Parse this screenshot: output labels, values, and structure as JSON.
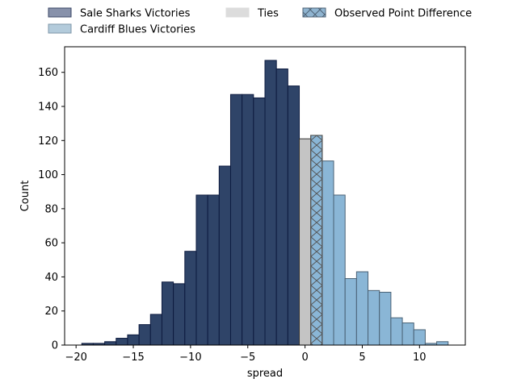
{
  "chart_data": {
    "type": "bar",
    "title": "",
    "xlabel": "spread",
    "ylabel": "Count",
    "xlim": [
      -21,
      14
    ],
    "ylim": [
      0,
      175
    ],
    "xticks": [
      -20,
      -15,
      -10,
      -5,
      0,
      5,
      10
    ],
    "xtick_labels": [
      "−20",
      "−15",
      "−10",
      "−5",
      "0",
      "5",
      "10"
    ],
    "yticks": [
      0,
      20,
      40,
      60,
      80,
      100,
      120,
      140,
      160
    ],
    "grid": false,
    "legend_position": "top, outside plot",
    "bin_width": 1,
    "series": [
      {
        "name": "Sale Sharks Victories",
        "color": "#2f4468",
        "edge_color": "#0d1b3f",
        "bins": [
          {
            "x0": -19.5,
            "count": 1
          },
          {
            "x0": -18.5,
            "count": 1
          },
          {
            "x0": -17.5,
            "count": 2
          },
          {
            "x0": -16.5,
            "count": 4
          },
          {
            "x0": -15.5,
            "count": 6
          },
          {
            "x0": -14.5,
            "count": 12
          },
          {
            "x0": -13.5,
            "count": 18
          },
          {
            "x0": -12.5,
            "count": 37
          },
          {
            "x0": -11.5,
            "count": 36
          },
          {
            "x0": -10.5,
            "count": 55
          },
          {
            "x0": -9.5,
            "count": 88
          },
          {
            "x0": -8.5,
            "count": 88
          },
          {
            "x0": -7.5,
            "count": 105
          },
          {
            "x0": -6.5,
            "count": 147
          },
          {
            "x0": -5.5,
            "count": 147
          },
          {
            "x0": -4.5,
            "count": 145
          },
          {
            "x0": -3.5,
            "count": 167
          },
          {
            "x0": -2.5,
            "count": 162
          },
          {
            "x0": -1.5,
            "count": 152
          }
        ]
      },
      {
        "name": "Ties",
        "color": "#c4c4c4",
        "edge_color": "#333333",
        "bins": [
          {
            "x0": -0.5,
            "count": 121
          }
        ]
      },
      {
        "name": "Cardiff Blues Victories",
        "color": "#8ab6d6",
        "edge_color": "#4a6275",
        "bins": [
          {
            "x0": 0.5,
            "count": 123
          },
          {
            "x0": 1.5,
            "count": 108
          },
          {
            "x0": 2.5,
            "count": 88
          },
          {
            "x0": 3.5,
            "count": 39
          },
          {
            "x0": 4.5,
            "count": 43
          },
          {
            "x0": 5.5,
            "count": 32
          },
          {
            "x0": 6.5,
            "count": 31
          },
          {
            "x0": 7.5,
            "count": 16
          },
          {
            "x0": 8.5,
            "count": 13
          },
          {
            "x0": 9.5,
            "count": 9
          },
          {
            "x0": 10.5,
            "count": 1
          },
          {
            "x0": 11.5,
            "count": 2
          }
        ]
      },
      {
        "name": "Observed Point Difference",
        "color": "#6fa3c8",
        "edge_color": "#555555",
        "hatch": "x",
        "bins": [
          {
            "x0": 0.5,
            "count": 123
          }
        ]
      }
    ],
    "legend": [
      {
        "label": "Sale Sharks Victories",
        "color": "#8791aa",
        "edge": "#3b4766",
        "hatch": false
      },
      {
        "label": "Cardiff Blues Victories",
        "color": "#b3cbdb",
        "edge": "#7f97a8",
        "hatch": false
      },
      {
        "label": "Ties",
        "color": "#dcdcdc",
        "edge": "#dcdcdc",
        "hatch": false
      },
      {
        "label": "Observed Point Difference",
        "color": "#8fb4d0",
        "edge": "#4d6275",
        "hatch": true
      }
    ]
  }
}
